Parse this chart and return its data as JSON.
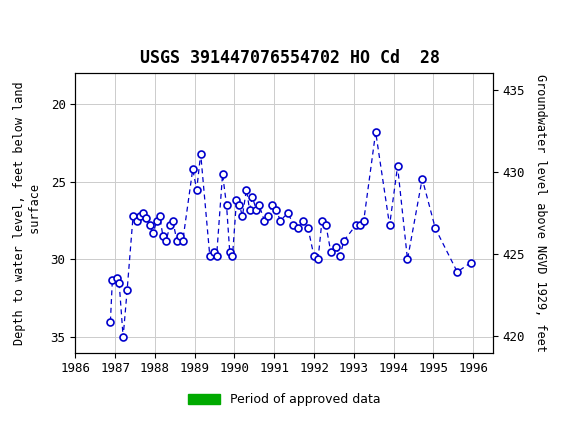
{
  "title": "USGS 391447076554702 HO Cd  28",
  "ylabel_left": "Depth to water level, feet below land\n surface",
  "ylabel_right": "Groundwater level above NGVD 1929, feet",
  "xlabel": "",
  "ylim_left": [
    36,
    18
  ],
  "ylim_right": [
    419,
    436
  ],
  "xlim": [
    1986.0,
    1996.5
  ],
  "xticks": [
    1986,
    1987,
    1988,
    1989,
    1990,
    1991,
    1992,
    1993,
    1994,
    1995,
    1996
  ],
  "yticks_left": [
    20,
    25,
    30,
    35
  ],
  "yticks_right": [
    420,
    425,
    430,
    435
  ],
  "header_color": "#1a6b3c",
  "line_color": "#0000cc",
  "marker_color": "#0000cc",
  "grid_color": "#cccccc",
  "legend_label": "Period of approved data",
  "legend_color": "#00aa00",
  "data_x": [
    1986.88,
    1986.93,
    1987.05,
    1987.1,
    1987.2,
    1987.3,
    1987.45,
    1987.55,
    1987.62,
    1987.7,
    1987.78,
    1987.87,
    1987.95,
    1988.05,
    1988.12,
    1988.2,
    1988.28,
    1988.38,
    1988.45,
    1988.55,
    1988.62,
    1988.7,
    1988.95,
    1989.05,
    1989.15,
    1989.38,
    1989.48,
    1989.55,
    1989.7,
    1989.8,
    1989.88,
    1989.95,
    1990.05,
    1990.12,
    1990.2,
    1990.3,
    1990.38,
    1990.45,
    1990.55,
    1990.62,
    1990.75,
    1990.85,
    1990.95,
    1991.05,
    1991.15,
    1991.35,
    1991.48,
    1991.6,
    1991.72,
    1991.85,
    1992.0,
    1992.1,
    1992.2,
    1992.3,
    1992.42,
    1992.55,
    1992.65,
    1992.75,
    1993.05,
    1993.15,
    1993.25,
    1993.55,
    1993.9,
    1994.1,
    1994.35,
    1994.72,
    1995.05,
    1995.6,
    1995.95
  ],
  "data_y": [
    34.0,
    31.3,
    31.2,
    31.5,
    35.0,
    32.0,
    27.2,
    27.5,
    27.2,
    27.0,
    27.3,
    27.8,
    28.3,
    27.5,
    27.2,
    28.5,
    28.8,
    27.8,
    27.5,
    28.8,
    28.5,
    28.8,
    24.2,
    25.5,
    23.2,
    29.8,
    29.5,
    29.8,
    24.5,
    26.5,
    29.5,
    29.8,
    26.2,
    26.5,
    27.2,
    25.5,
    26.8,
    26.0,
    26.8,
    26.5,
    27.5,
    27.2,
    26.5,
    26.8,
    27.5,
    27.0,
    27.8,
    28.0,
    27.5,
    28.0,
    29.8,
    30.0,
    27.5,
    27.8,
    29.5,
    29.2,
    29.8,
    28.8,
    27.8,
    27.8,
    27.5,
    21.8,
    27.8,
    24.0,
    30.0,
    24.8,
    28.0,
    30.8,
    30.2
  ],
  "background_color": "#ffffff",
  "plot_bg_color": "#ffffff"
}
